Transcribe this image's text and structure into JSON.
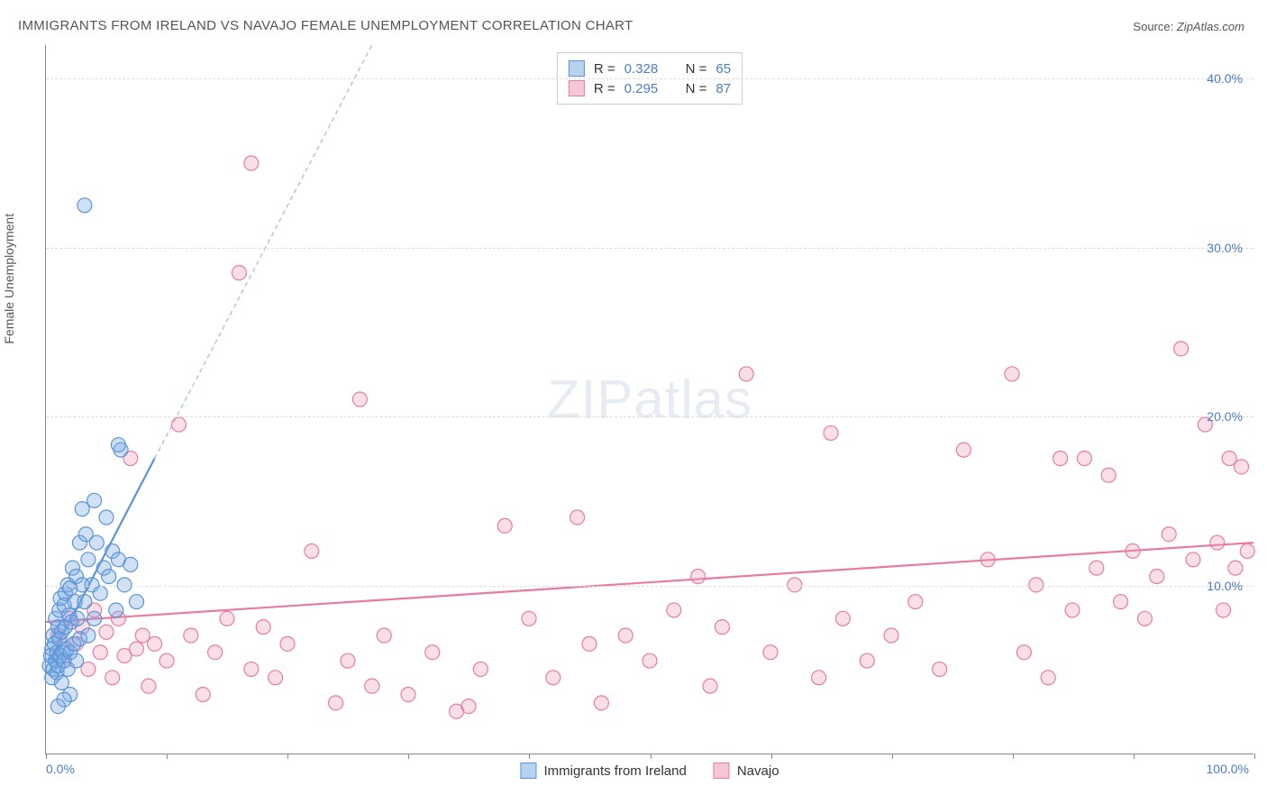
{
  "title": "IMMIGRANTS FROM IRELAND VS NAVAJO FEMALE UNEMPLOYMENT CORRELATION CHART",
  "source_label": "Source:",
  "source_value": "ZipAtlas.com",
  "ylabel": "Female Unemployment",
  "watermark_bold": "ZIP",
  "watermark_light": "atlas",
  "chart": {
    "type": "scatter",
    "background_color": "#ffffff",
    "grid_color": "#dddddd",
    "axis_color": "#888888",
    "tick_color": "#4a7dc9",
    "text_color": "#555555",
    "xlim": [
      0,
      100
    ],
    "ylim": [
      0,
      42
    ],
    "xtick_label_min": "0.0%",
    "xtick_label_max": "100.0%",
    "xtick_positions": [
      0,
      10,
      20,
      30,
      40,
      50,
      60,
      70,
      80,
      90,
      100
    ],
    "ytick_positions": [
      10,
      20,
      30,
      40
    ],
    "ytick_labels": [
      "10.0%",
      "20.0%",
      "30.0%",
      "40.0%"
    ],
    "marker_radius": 8,
    "marker_stroke_width": 1.2,
    "trend_line_width": 2.2,
    "trend_dash": "5,4",
    "series": [
      {
        "name": "Immigrants from Ireland",
        "color_fill": "rgba(120,170,230,0.35)",
        "color_stroke": "#5a94d6",
        "swatch_fill": "#b8d3f0",
        "swatch_border": "#5a94d6",
        "R": "0.328",
        "N": "65",
        "trend_solid": {
          "x1": 0.3,
          "y1": 5.5,
          "x2": 9,
          "y2": 17.5
        },
        "trend_dashed": {
          "x1": 9,
          "y1": 17.5,
          "x2": 27,
          "y2": 42
        },
        "points": [
          [
            0.3,
            5.2
          ],
          [
            0.4,
            5.8
          ],
          [
            0.5,
            4.5
          ],
          [
            0.5,
            6.2
          ],
          [
            0.6,
            5.0
          ],
          [
            0.6,
            7.0
          ],
          [
            0.7,
            6.5
          ],
          [
            0.8,
            5.5
          ],
          [
            0.8,
            8.0
          ],
          [
            0.9,
            6.0
          ],
          [
            0.9,
            4.8
          ],
          [
            1.0,
            7.5
          ],
          [
            1.0,
            5.2
          ],
          [
            1.1,
            6.8
          ],
          [
            1.1,
            8.5
          ],
          [
            1.2,
            5.8
          ],
          [
            1.2,
            9.2
          ],
          [
            1.3,
            7.2
          ],
          [
            1.3,
            4.2
          ],
          [
            1.4,
            6.0
          ],
          [
            1.5,
            8.8
          ],
          [
            1.5,
            5.5
          ],
          [
            1.6,
            7.5
          ],
          [
            1.6,
            9.5
          ],
          [
            1.7,
            6.2
          ],
          [
            1.8,
            10.0
          ],
          [
            1.8,
            5.0
          ],
          [
            1.9,
            8.2
          ],
          [
            2.0,
            9.8
          ],
          [
            2.0,
            6.0
          ],
          [
            2.1,
            7.8
          ],
          [
            2.2,
            11.0
          ],
          [
            2.3,
            6.5
          ],
          [
            2.4,
            9.0
          ],
          [
            2.5,
            10.5
          ],
          [
            2.5,
            5.5
          ],
          [
            2.6,
            8.0
          ],
          [
            2.8,
            12.5
          ],
          [
            2.8,
            6.8
          ],
          [
            3.0,
            10.0
          ],
          [
            3.0,
            14.5
          ],
          [
            3.2,
            9.0
          ],
          [
            3.3,
            13.0
          ],
          [
            3.5,
            11.5
          ],
          [
            3.5,
            7.0
          ],
          [
            3.8,
            10.0
          ],
          [
            4.0,
            15.0
          ],
          [
            4.0,
            8.0
          ],
          [
            4.2,
            12.5
          ],
          [
            4.5,
            9.5
          ],
          [
            4.8,
            11.0
          ],
          [
            5.0,
            14.0
          ],
          [
            5.2,
            10.5
          ],
          [
            5.5,
            12.0
          ],
          [
            5.8,
            8.5
          ],
          [
            6.0,
            11.5
          ],
          [
            6.2,
            18.0
          ],
          [
            6.5,
            10.0
          ],
          [
            7.0,
            11.2
          ],
          [
            7.5,
            9.0
          ],
          [
            3.2,
            32.5
          ],
          [
            6.0,
            18.3
          ],
          [
            2.0,
            3.5
          ],
          [
            1.5,
            3.2
          ],
          [
            1.0,
            2.8
          ]
        ]
      },
      {
        "name": "Navajo",
        "color_fill": "rgba(240,150,180,0.30)",
        "color_stroke": "#e77ba4",
        "swatch_fill": "#f5c5d8",
        "swatch_border": "#e77ba4",
        "R": "0.295",
        "N": "87",
        "trend_solid": {
          "x1": 0,
          "y1": 7.8,
          "x2": 100,
          "y2": 12.5
        },
        "trend_dashed": null,
        "points": [
          [
            1.0,
            7.0
          ],
          [
            1.5,
            5.5
          ],
          [
            2.0,
            8.0
          ],
          [
            2.5,
            6.5
          ],
          [
            3.0,
            7.5
          ],
          [
            3.5,
            5.0
          ],
          [
            4.0,
            8.5
          ],
          [
            4.5,
            6.0
          ],
          [
            5.0,
            7.2
          ],
          [
            5.5,
            4.5
          ],
          [
            6.0,
            8.0
          ],
          [
            6.5,
            5.8
          ],
          [
            7.0,
            17.5
          ],
          [
            7.5,
            6.2
          ],
          [
            8.0,
            7.0
          ],
          [
            8.5,
            4.0
          ],
          [
            9.0,
            6.5
          ],
          [
            10.0,
            5.5
          ],
          [
            11.0,
            19.5
          ],
          [
            12.0,
            7.0
          ],
          [
            13.0,
            3.5
          ],
          [
            14.0,
            6.0
          ],
          [
            15.0,
            8.0
          ],
          [
            16.0,
            28.5
          ],
          [
            17.0,
            5.0
          ],
          [
            17.0,
            35.0
          ],
          [
            18.0,
            7.5
          ],
          [
            19.0,
            4.5
          ],
          [
            20.0,
            6.5
          ],
          [
            22.0,
            12.0
          ],
          [
            24.0,
            3.0
          ],
          [
            25.0,
            5.5
          ],
          [
            26.0,
            21.0
          ],
          [
            27.0,
            4.0
          ],
          [
            28.0,
            7.0
          ],
          [
            30.0,
            3.5
          ],
          [
            32.0,
            6.0
          ],
          [
            34.0,
            2.5
          ],
          [
            35.0,
            2.8
          ],
          [
            36.0,
            5.0
          ],
          [
            38.0,
            13.5
          ],
          [
            40.0,
            8.0
          ],
          [
            42.0,
            4.5
          ],
          [
            44.0,
            14.0
          ],
          [
            45.0,
            6.5
          ],
          [
            46.0,
            3.0
          ],
          [
            48.0,
            7.0
          ],
          [
            50.0,
            5.5
          ],
          [
            52.0,
            8.5
          ],
          [
            54.0,
            10.5
          ],
          [
            55.0,
            4.0
          ],
          [
            56.0,
            7.5
          ],
          [
            58.0,
            22.5
          ],
          [
            60.0,
            6.0
          ],
          [
            62.0,
            10.0
          ],
          [
            64.0,
            4.5
          ],
          [
            65.0,
            19.0
          ],
          [
            66.0,
            8.0
          ],
          [
            68.0,
            5.5
          ],
          [
            70.0,
            7.0
          ],
          [
            72.0,
            9.0
          ],
          [
            74.0,
            5.0
          ],
          [
            76.0,
            18.0
          ],
          [
            78.0,
            11.5
          ],
          [
            80.0,
            22.5
          ],
          [
            81.0,
            6.0
          ],
          [
            82.0,
            10.0
          ],
          [
            83.0,
            4.5
          ],
          [
            84.0,
            17.5
          ],
          [
            85.0,
            8.5
          ],
          [
            86.0,
            17.5
          ],
          [
            87.0,
            11.0
          ],
          [
            88.0,
            16.5
          ],
          [
            89.0,
            9.0
          ],
          [
            90.0,
            12.0
          ],
          [
            91.0,
            8.0
          ],
          [
            92.0,
            10.5
          ],
          [
            93.0,
            13.0
          ],
          [
            94.0,
            24.0
          ],
          [
            95.0,
            11.5
          ],
          [
            96.0,
            19.5
          ],
          [
            97.0,
            12.5
          ],
          [
            97.5,
            8.5
          ],
          [
            98.0,
            17.5
          ],
          [
            98.5,
            11.0
          ],
          [
            99.0,
            17.0
          ],
          [
            99.5,
            12.0
          ]
        ]
      }
    ],
    "bottom_legend": [
      {
        "swatch_fill": "#b8d3f0",
        "swatch_border": "#5a94d6",
        "label": "Immigrants from Ireland"
      },
      {
        "swatch_fill": "#f5c5d8",
        "swatch_border": "#e77ba4",
        "label": "Navajo"
      }
    ]
  }
}
